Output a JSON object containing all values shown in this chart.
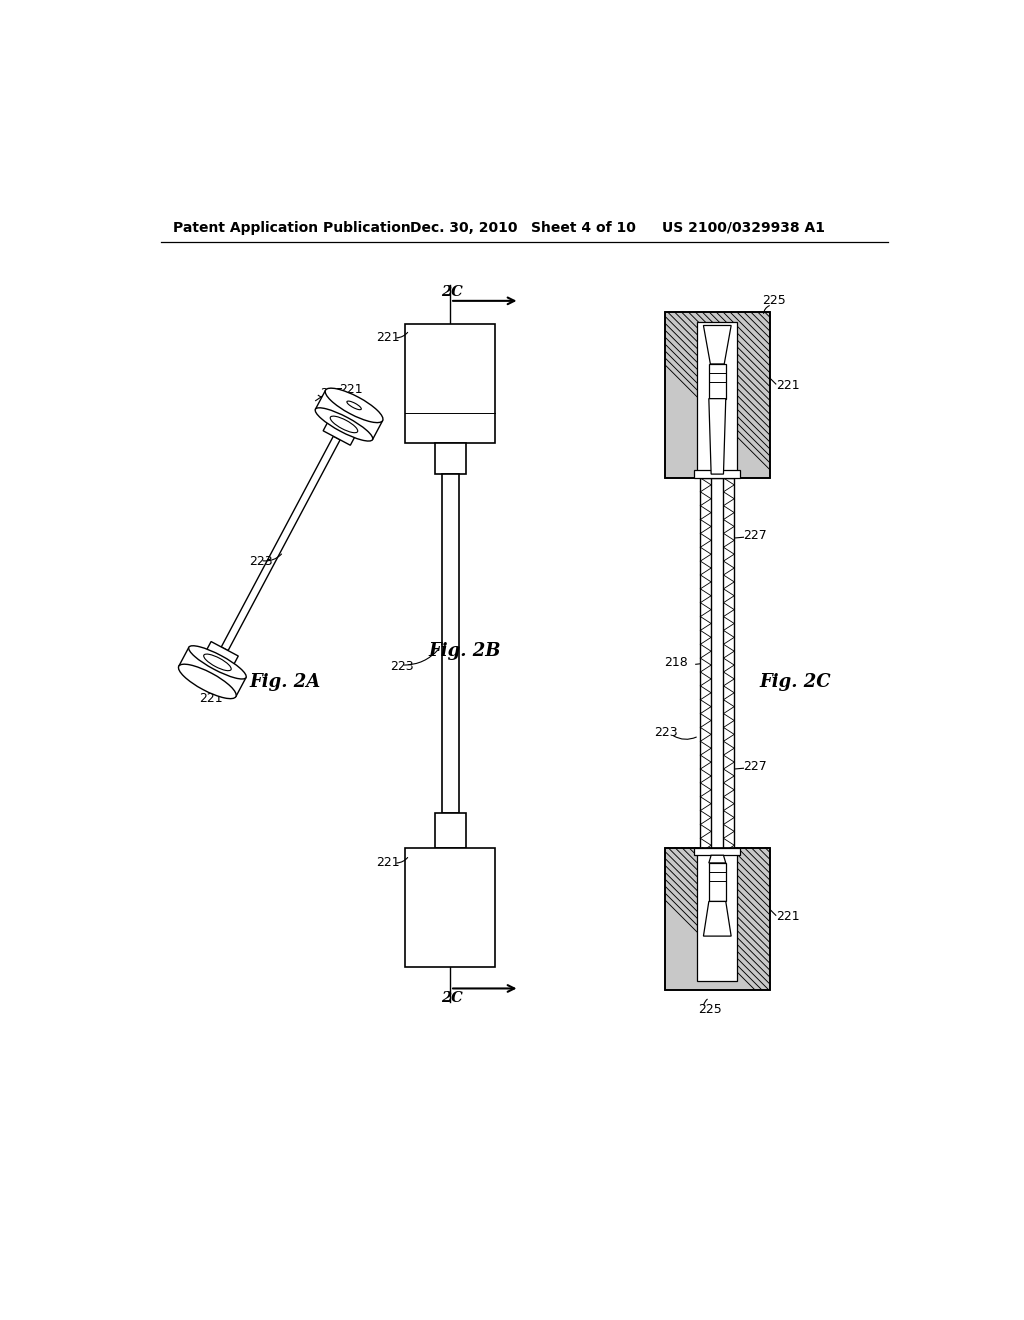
{
  "bg_color": "#ffffff",
  "lc": "#000000",
  "header_text": "Patent Application Publication",
  "header_date": "Dec. 30, 2010",
  "header_sheet": "Sheet 4 of 10",
  "header_patent": "US 2100/0329938 A1",
  "fig2a_label": "Fig. 2A",
  "fig2b_label": "Fig. 2B",
  "fig2c_label": "Fig. 2C",
  "l221": "221",
  "l223": "223",
  "l225": "225",
  "l227": "227",
  "l218": "218",
  "l2C": "2C"
}
